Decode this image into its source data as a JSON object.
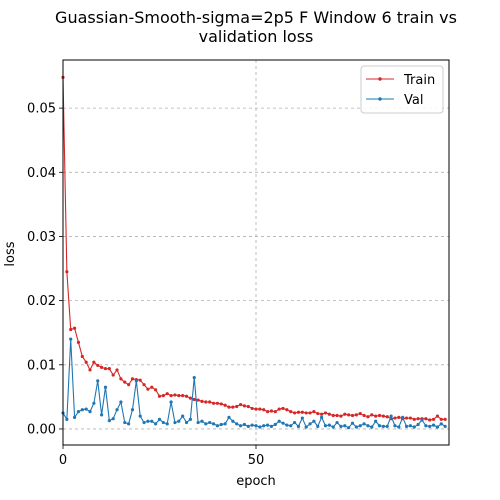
{
  "chart_data": {
    "type": "line",
    "title_lines": [
      "Guassian-Smooth-sigma=2p5 F Window 6 train vs",
      "validation loss"
    ],
    "xlabel": "epoch",
    "ylabel": "loss",
    "xlim": [
      0,
      100
    ],
    "ylim": [
      -0.0025,
      0.0575
    ],
    "xticks": [
      0,
      50
    ],
    "xtick_labels": [
      "0",
      "50"
    ],
    "yticks": [
      0.0,
      0.01,
      0.02,
      0.03,
      0.04,
      0.05
    ],
    "ytick_labels": [
      "0.00",
      "0.01",
      "0.02",
      "0.03",
      "0.04",
      "0.05"
    ],
    "grid": true,
    "legend_position": "top-right",
    "series": [
      {
        "name": "Train",
        "color": "#d62728",
        "values": [
          0.0548,
          0.0245,
          0.0155,
          0.0157,
          0.0135,
          0.0113,
          0.0104,
          0.0092,
          0.0104,
          0.0099,
          0.0096,
          0.0094,
          0.0094,
          0.0084,
          0.0092,
          0.0078,
          0.0073,
          0.0069,
          0.0078,
          0.0077,
          0.0076,
          0.0069,
          0.0062,
          0.0065,
          0.0061,
          0.0051,
          0.0052,
          0.0055,
          0.0052,
          0.0053,
          0.0052,
          0.0052,
          0.0051,
          0.0048,
          0.0046,
          0.0045,
          0.0043,
          0.0042,
          0.0042,
          0.004,
          0.004,
          0.0039,
          0.0037,
          0.0034,
          0.0034,
          0.0035,
          0.0038,
          0.0036,
          0.0035,
          0.0032,
          0.0031,
          0.0031,
          0.003,
          0.0027,
          0.0028,
          0.0027,
          0.0031,
          0.0032,
          0.003,
          0.0027,
          0.0025,
          0.0026,
          0.0026,
          0.0025,
          0.0025,
          0.0027,
          0.0024,
          0.0023,
          0.0025,
          0.0023,
          0.0021,
          0.0021,
          0.002,
          0.0023,
          0.0022,
          0.0021,
          0.0022,
          0.0024,
          0.0021,
          0.0019,
          0.0022,
          0.002,
          0.0021,
          0.002,
          0.0019,
          0.0016,
          0.0017,
          0.0018,
          0.0016,
          0.0017,
          0.0017,
          0.0015,
          0.0016,
          0.0016,
          0.0016,
          0.0014,
          0.0015,
          0.002,
          0.0015,
          0.0015
        ]
      },
      {
        "name": "Val",
        "color": "#1f77b4",
        "values": [
          0.0025,
          0.0015,
          0.014,
          0.0018,
          0.0027,
          0.003,
          0.0031,
          0.0027,
          0.004,
          0.0075,
          0.0022,
          0.0065,
          0.0013,
          0.0016,
          0.003,
          0.0042,
          0.001,
          0.0008,
          0.003,
          0.0075,
          0.002,
          0.001,
          0.0012,
          0.0012,
          0.0008,
          0.0015,
          0.001,
          0.0008,
          0.0042,
          0.001,
          0.0012,
          0.002,
          0.001,
          0.0015,
          0.008,
          0.001,
          0.0012,
          0.0008,
          0.001,
          0.0008,
          0.0005,
          0.0007,
          0.0008,
          0.0018,
          0.0012,
          0.0008,
          0.0005,
          0.0007,
          0.0004,
          0.0006,
          0.0005,
          0.0003,
          0.0005,
          0.0006,
          0.0004,
          0.0007,
          0.0012,
          0.0009,
          0.0006,
          0.0005,
          0.001,
          0.0004,
          0.0017,
          0.0003,
          0.0008,
          0.0012,
          0.0004,
          0.0018,
          0.0005,
          0.0006,
          0.0003,
          0.001,
          0.0004,
          0.0005,
          0.0002,
          0.0009,
          0.0003,
          0.0005,
          0.0008,
          0.0005,
          0.0003,
          0.0012,
          0.0005,
          0.0004,
          0.0004,
          0.002,
          0.0005,
          0.0003,
          0.0018,
          0.0004,
          0.0005,
          0.0003,
          0.0007,
          0.0014,
          0.0005,
          0.0004,
          0.0006,
          0.0003,
          0.0008,
          0.0004
        ]
      }
    ]
  }
}
